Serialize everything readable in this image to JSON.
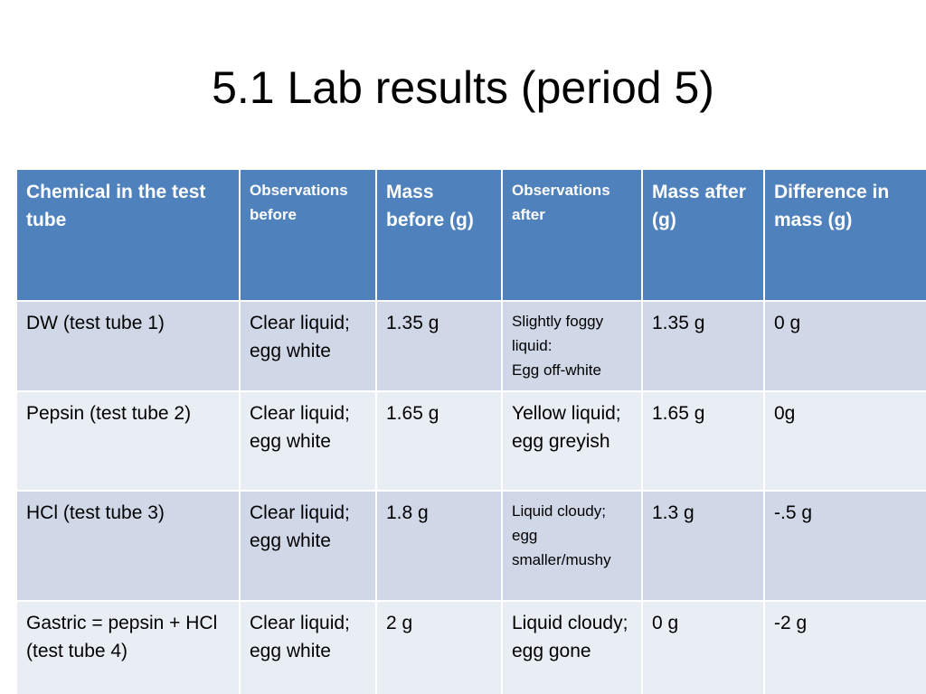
{
  "slide": {
    "title": "5.1 Lab results (period 5)"
  },
  "table": {
    "headers": [
      "Chemical in the test tube",
      "Observations before",
      "Mass before (g)",
      "Observations after",
      "Mass after (g)",
      "Difference in mass (g)"
    ],
    "rows": [
      [
        "DW  (test tube 1)",
        "Clear liquid; egg white",
        "1.35 g",
        "Slightly foggy liquid:\nEgg off-white",
        "1.35 g",
        "0 g"
      ],
      [
        "Pepsin (test tube 2)",
        "Clear liquid; egg white",
        "1.65 g",
        "Yellow liquid; egg greyish",
        "1.65 g",
        "0g"
      ],
      [
        "HCl  (test tube 3)",
        "Clear liquid; egg white",
        "1.8 g",
        "Liquid cloudy; egg smaller/mushy",
        "1.3 g",
        "-.5 g"
      ],
      [
        "Gastric = pepsin + HCl (test tube 4)",
        "Clear liquid; egg white",
        "2 g",
        "Liquid cloudy; egg gone",
        "0 g",
        "-2 g"
      ]
    ]
  },
  "colors": {
    "header_bg": "#4f81bd",
    "row_dark": "#d0d8e8",
    "row_light": "#e9edf4"
  }
}
